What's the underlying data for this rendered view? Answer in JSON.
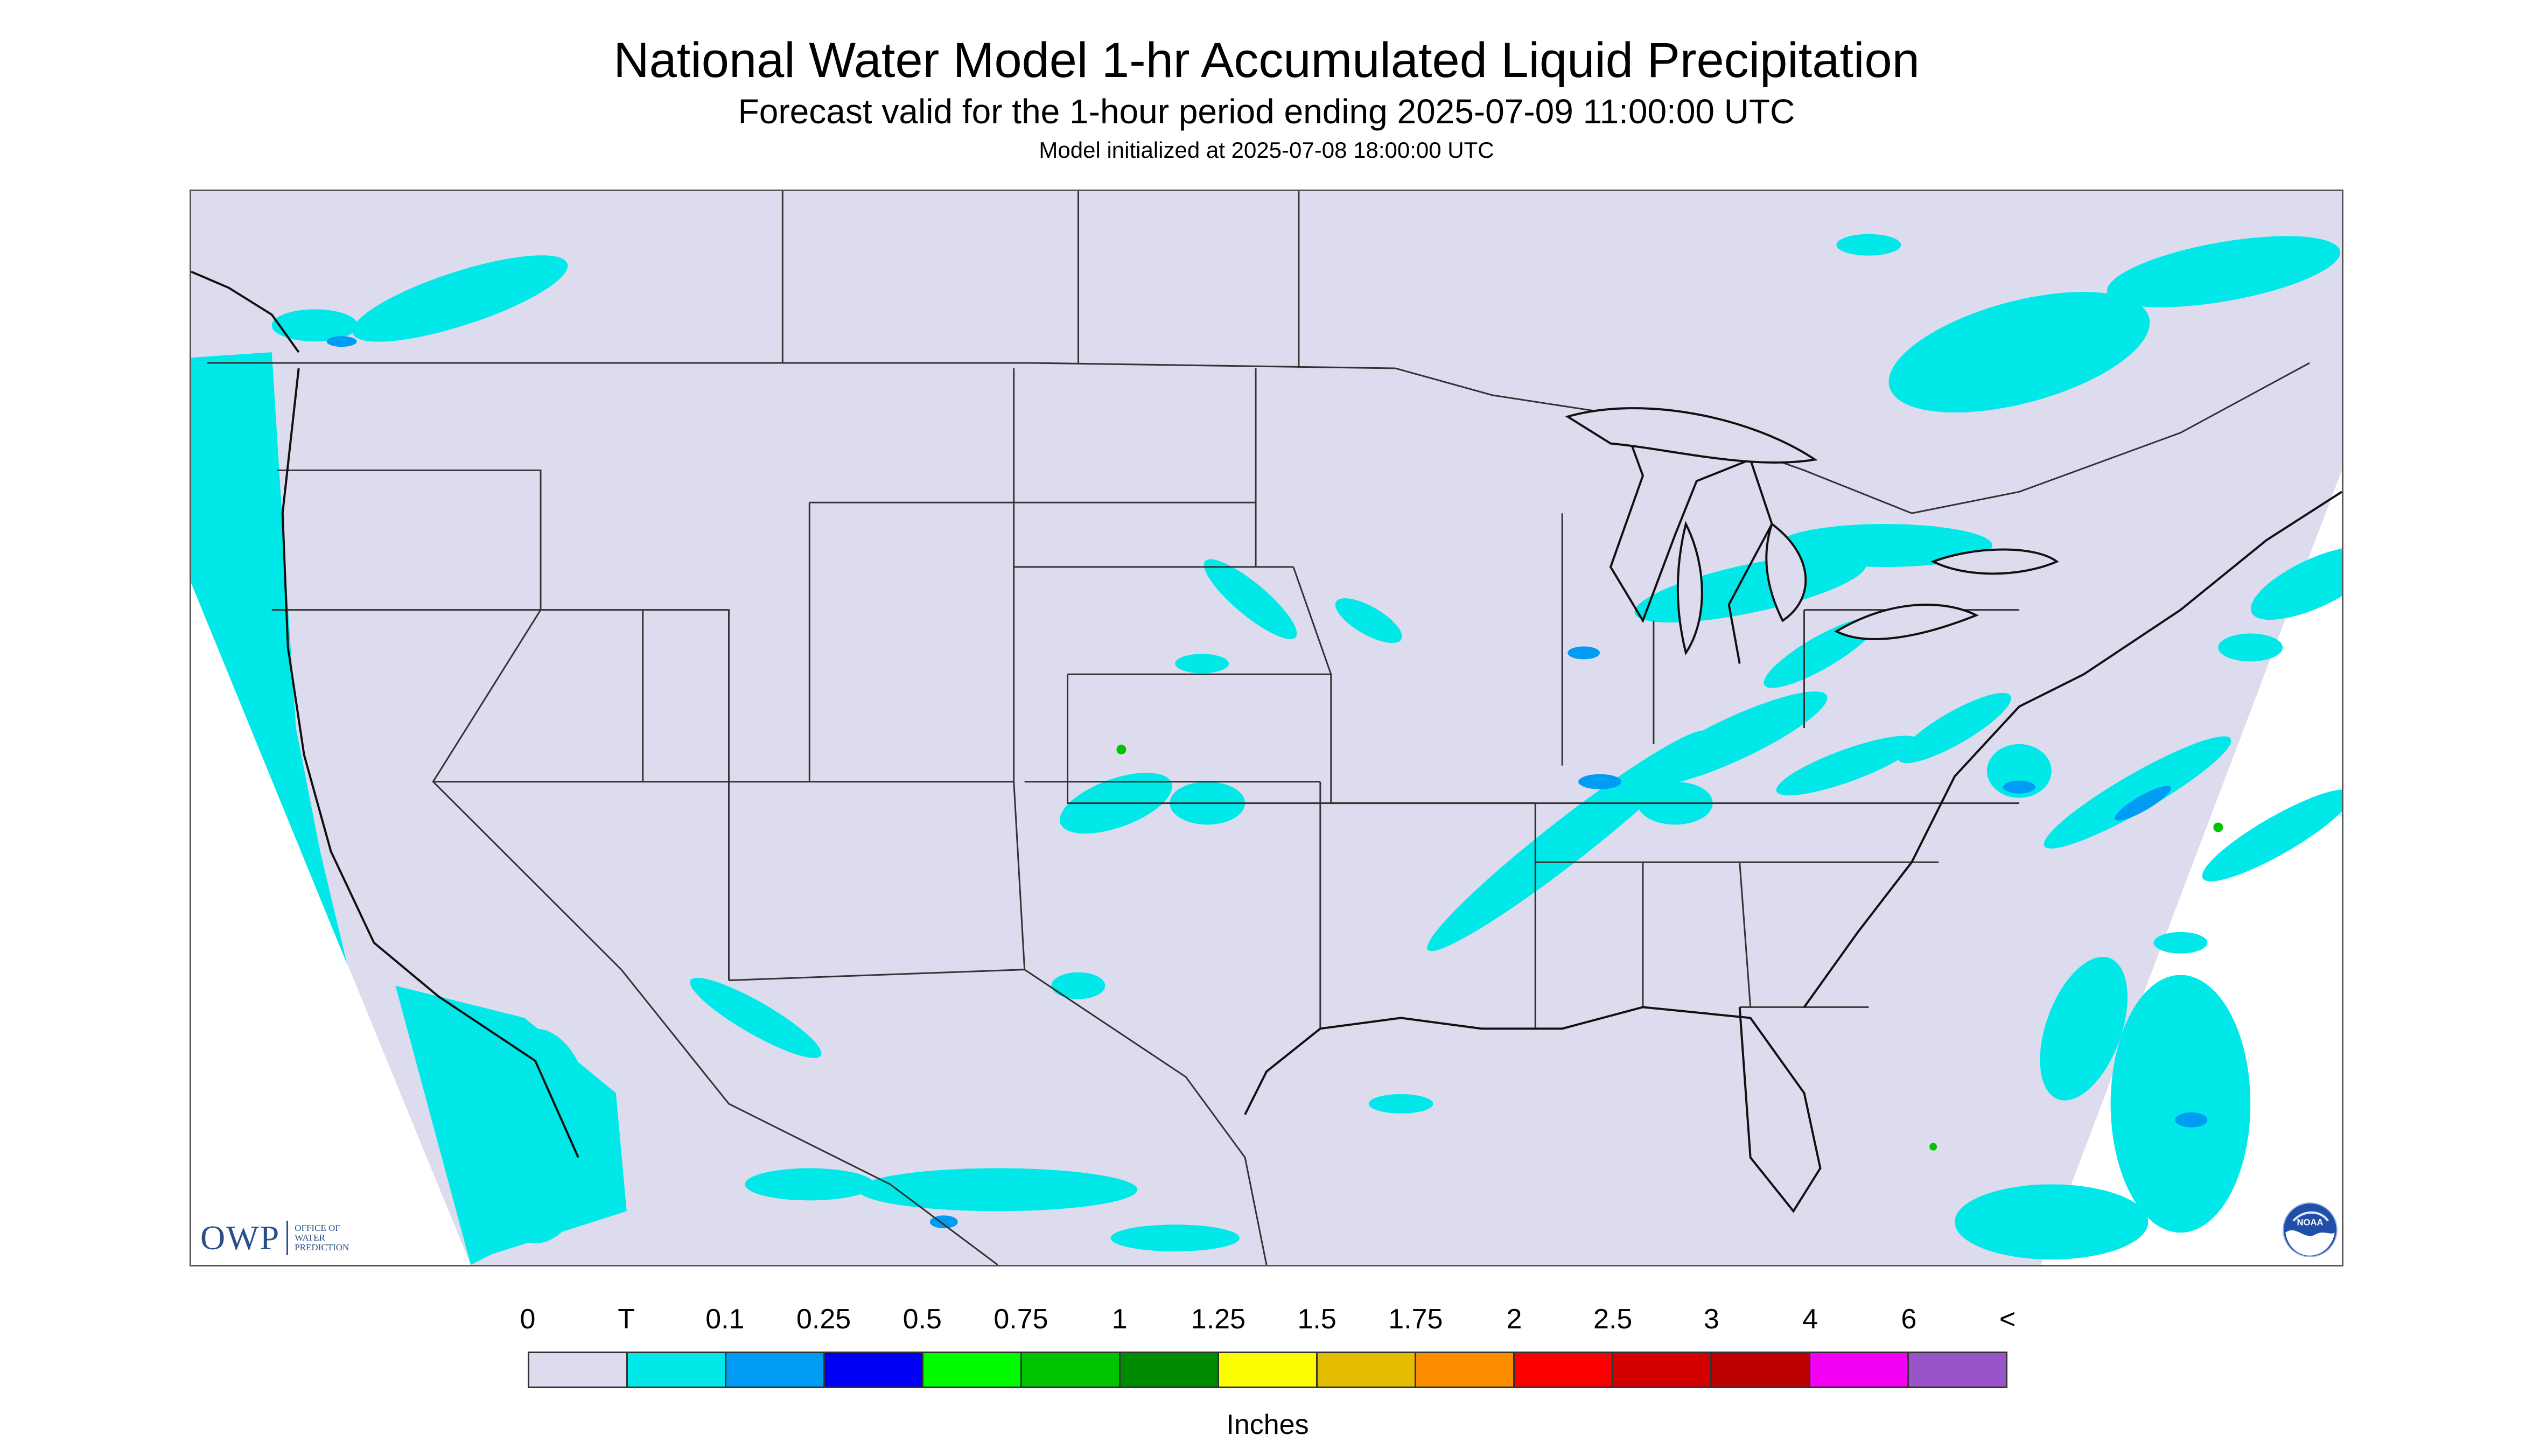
{
  "title": "National Water Model 1-hr Accumulated Liquid Precipitation",
  "subtitle": "Forecast valid for the 1-hour period ending 2025-07-09 11:00:00 UTC",
  "init_line": "Model initialized at 2025-07-08 18:00:00 UTC",
  "logos": {
    "owp_letters": "OWP",
    "owp_line1": "OFFICE OF",
    "owp_line2": "WATER",
    "owp_line3": "PREDICTION",
    "noaa_text": "NOAA"
  },
  "colors": {
    "domain_background": "#dcdcee",
    "outside_domain": "#ffffff",
    "boundary_line": "#333333",
    "coastline": "#111111"
  },
  "legend": {
    "unit": "Inches",
    "tick_labels": [
      "0",
      "T",
      "0.1",
      "0.25",
      "0.5",
      "0.75",
      "1",
      "1.25",
      "1.5",
      "1.75",
      "2",
      "2.5",
      "3",
      "4",
      "6",
      "<"
    ],
    "bins": [
      {
        "label": "0 - T",
        "color": "#dcdcee"
      },
      {
        "label": "T - 0.1",
        "color": "#00e8e8"
      },
      {
        "label": "0.1 - 0.25",
        "color": "#009cf4"
      },
      {
        "label": "0.25 - 0.5",
        "color": "#0000f4"
      },
      {
        "label": "0.5 - 0.75",
        "color": "#00fc00"
      },
      {
        "label": "0.75 - 1",
        "color": "#00c400"
      },
      {
        "label": "1 - 1.25",
        "color": "#008c00"
      },
      {
        "label": "1.25 - 1.5",
        "color": "#fcfc00"
      },
      {
        "label": "1.5 - 1.75",
        "color": "#e4bc00"
      },
      {
        "label": "1.75 - 2",
        "color": "#fc8c00"
      },
      {
        "label": "2 - 2.5",
        "color": "#fc0000"
      },
      {
        "label": "2.5 - 3",
        "color": "#d40000"
      },
      {
        "label": "3 - 4",
        "color": "#bc0000"
      },
      {
        "label": "4 - 6",
        "color": "#f400f4"
      },
      {
        "label": "6 <",
        "color": "#9854c8"
      }
    ]
  }
}
